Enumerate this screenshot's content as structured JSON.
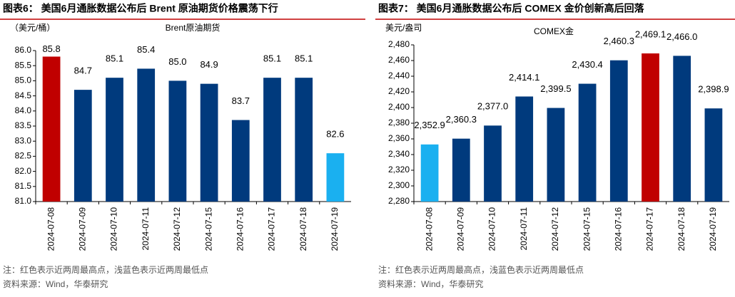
{
  "chart_data": [
    {
      "type": "bar",
      "figure_title": "图表6：  美国6月通胀数据公布后 Brent 原油期货价格震荡下行",
      "title": "Brent原油期货",
      "y_label": "（美元/桶）",
      "categories": [
        "2024-07-08",
        "2024-07-09",
        "2024-07-10",
        "2024-07-11",
        "2024-07-12",
        "2024-07-15",
        "2024-07-16",
        "2024-07-17",
        "2024-07-18",
        "2024-07-19"
      ],
      "values": [
        85.8,
        84.7,
        85.1,
        85.4,
        85.0,
        84.9,
        83.7,
        85.1,
        85.1,
        82.6
      ],
      "value_labels": [
        "85.8",
        "84.7",
        "85.1",
        "85.4",
        "85.0",
        "84.9",
        "83.7",
        "85.1",
        "85.1",
        "82.6"
      ],
      "colors": [
        "#c00000",
        "#003a7d",
        "#003a7d",
        "#003a7d",
        "#003a7d",
        "#003a7d",
        "#003a7d",
        "#003a7d",
        "#003a7d",
        "#1ab0f0"
      ],
      "ylim": [
        81.0,
        86.0
      ],
      "yticks": [
        {
          "value": 81,
          "label": "81.0"
        },
        {
          "value": 81.5,
          "label": "81.5"
        },
        {
          "value": 82,
          "label": "82.0"
        },
        {
          "value": 82.5,
          "label": "82.5"
        },
        {
          "value": 83,
          "label": "83.0"
        },
        {
          "value": 83.5,
          "label": "83.5"
        },
        {
          "value": 84,
          "label": "84.0"
        },
        {
          "value": 84.5,
          "label": "84.5"
        },
        {
          "value": 85,
          "label": "85.0"
        },
        {
          "value": 85.5,
          "label": "85.5"
        },
        {
          "value": 86,
          "label": "86.0"
        }
      ],
      "note": "注：红色表示近两周最高点，浅蓝色表示近两周最低点",
      "source": "资料来源：Wind，华泰研究"
    },
    {
      "type": "bar",
      "figure_title": "图表7：  美国6月通胀数据公布后 COMEX 金价创新高后回落",
      "title": "COMEX金",
      "y_label": "美元/盎司",
      "categories": [
        "2024-07-08",
        "2024-07-09",
        "2024-07-10",
        "2024-07-11",
        "2024-07-12",
        "2024-07-15",
        "2024-07-16",
        "2024-07-17",
        "2024-07-18",
        "2024-07-19"
      ],
      "values": [
        2352.9,
        2360.3,
        2377.0,
        2414.1,
        2399.5,
        2430.4,
        2460.3,
        2469.1,
        2466.0,
        2398.9
      ],
      "value_labels": [
        "2,352.9",
        "2,360.3",
        "2,377.0",
        "2,414.1",
        "2,399.5",
        "2,430.4",
        "2,460.3",
        "2,469.1",
        "2,466.0",
        "2,398.9"
      ],
      "colors": [
        "#1ab0f0",
        "#003a7d",
        "#003a7d",
        "#003a7d",
        "#003a7d",
        "#003a7d",
        "#003a7d",
        "#c00000",
        "#003a7d",
        "#003a7d"
      ],
      "ylim": [
        2280,
        2480
      ],
      "yticks": [
        {
          "value": 2280,
          "label": "2,280"
        },
        {
          "value": 2300,
          "label": "2,300"
        },
        {
          "value": 2320,
          "label": "2,320"
        },
        {
          "value": 2340,
          "label": "2,340"
        },
        {
          "value": 2360,
          "label": "2,360"
        },
        {
          "value": 2380,
          "label": "2,380"
        },
        {
          "value": 2400,
          "label": "2,400"
        },
        {
          "value": 2420,
          "label": "2,420"
        },
        {
          "value": 2440,
          "label": "2,440"
        },
        {
          "value": 2460,
          "label": "2,460"
        },
        {
          "value": 2480,
          "label": "2,480"
        }
      ],
      "note": "注：红色表示近两周最高点，浅蓝色表示近两周最低点",
      "source": "资料来源：Wind，华泰研究"
    }
  ]
}
